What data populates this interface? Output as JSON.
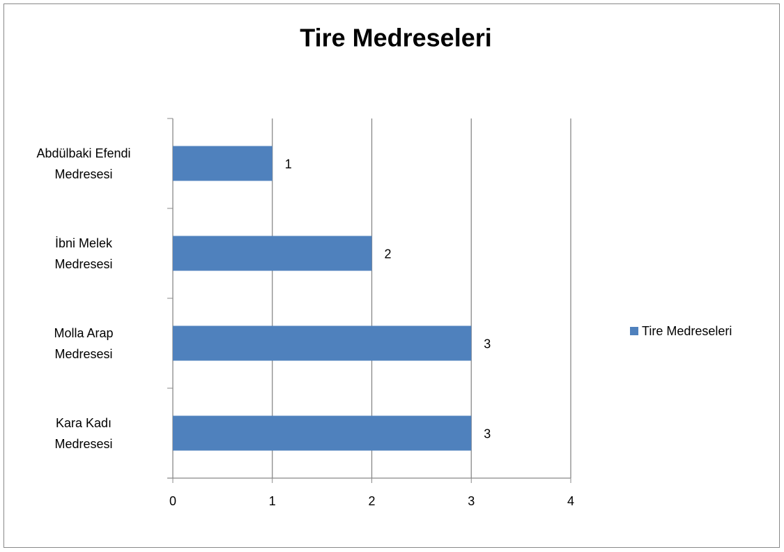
{
  "chart_data": {
    "type": "bar",
    "orientation": "horizontal",
    "title": "Tire Medreseleri",
    "categories": [
      "Abdülbaki Efendi\nMedresesi",
      "İbni Melek\nMedresesi",
      "Molla Arap\nMedresesi",
      "Kara Kadı\nMedresesi"
    ],
    "series": [
      {
        "name": "Tire Medreseleri",
        "color": "#4f81bd",
        "values": [
          1,
          2,
          3,
          3
        ]
      }
    ],
    "xlim": [
      0,
      4
    ],
    "xticks": [
      0,
      1,
      2,
      3,
      4
    ],
    "grid": true,
    "legend": "right",
    "data_labels": true
  }
}
